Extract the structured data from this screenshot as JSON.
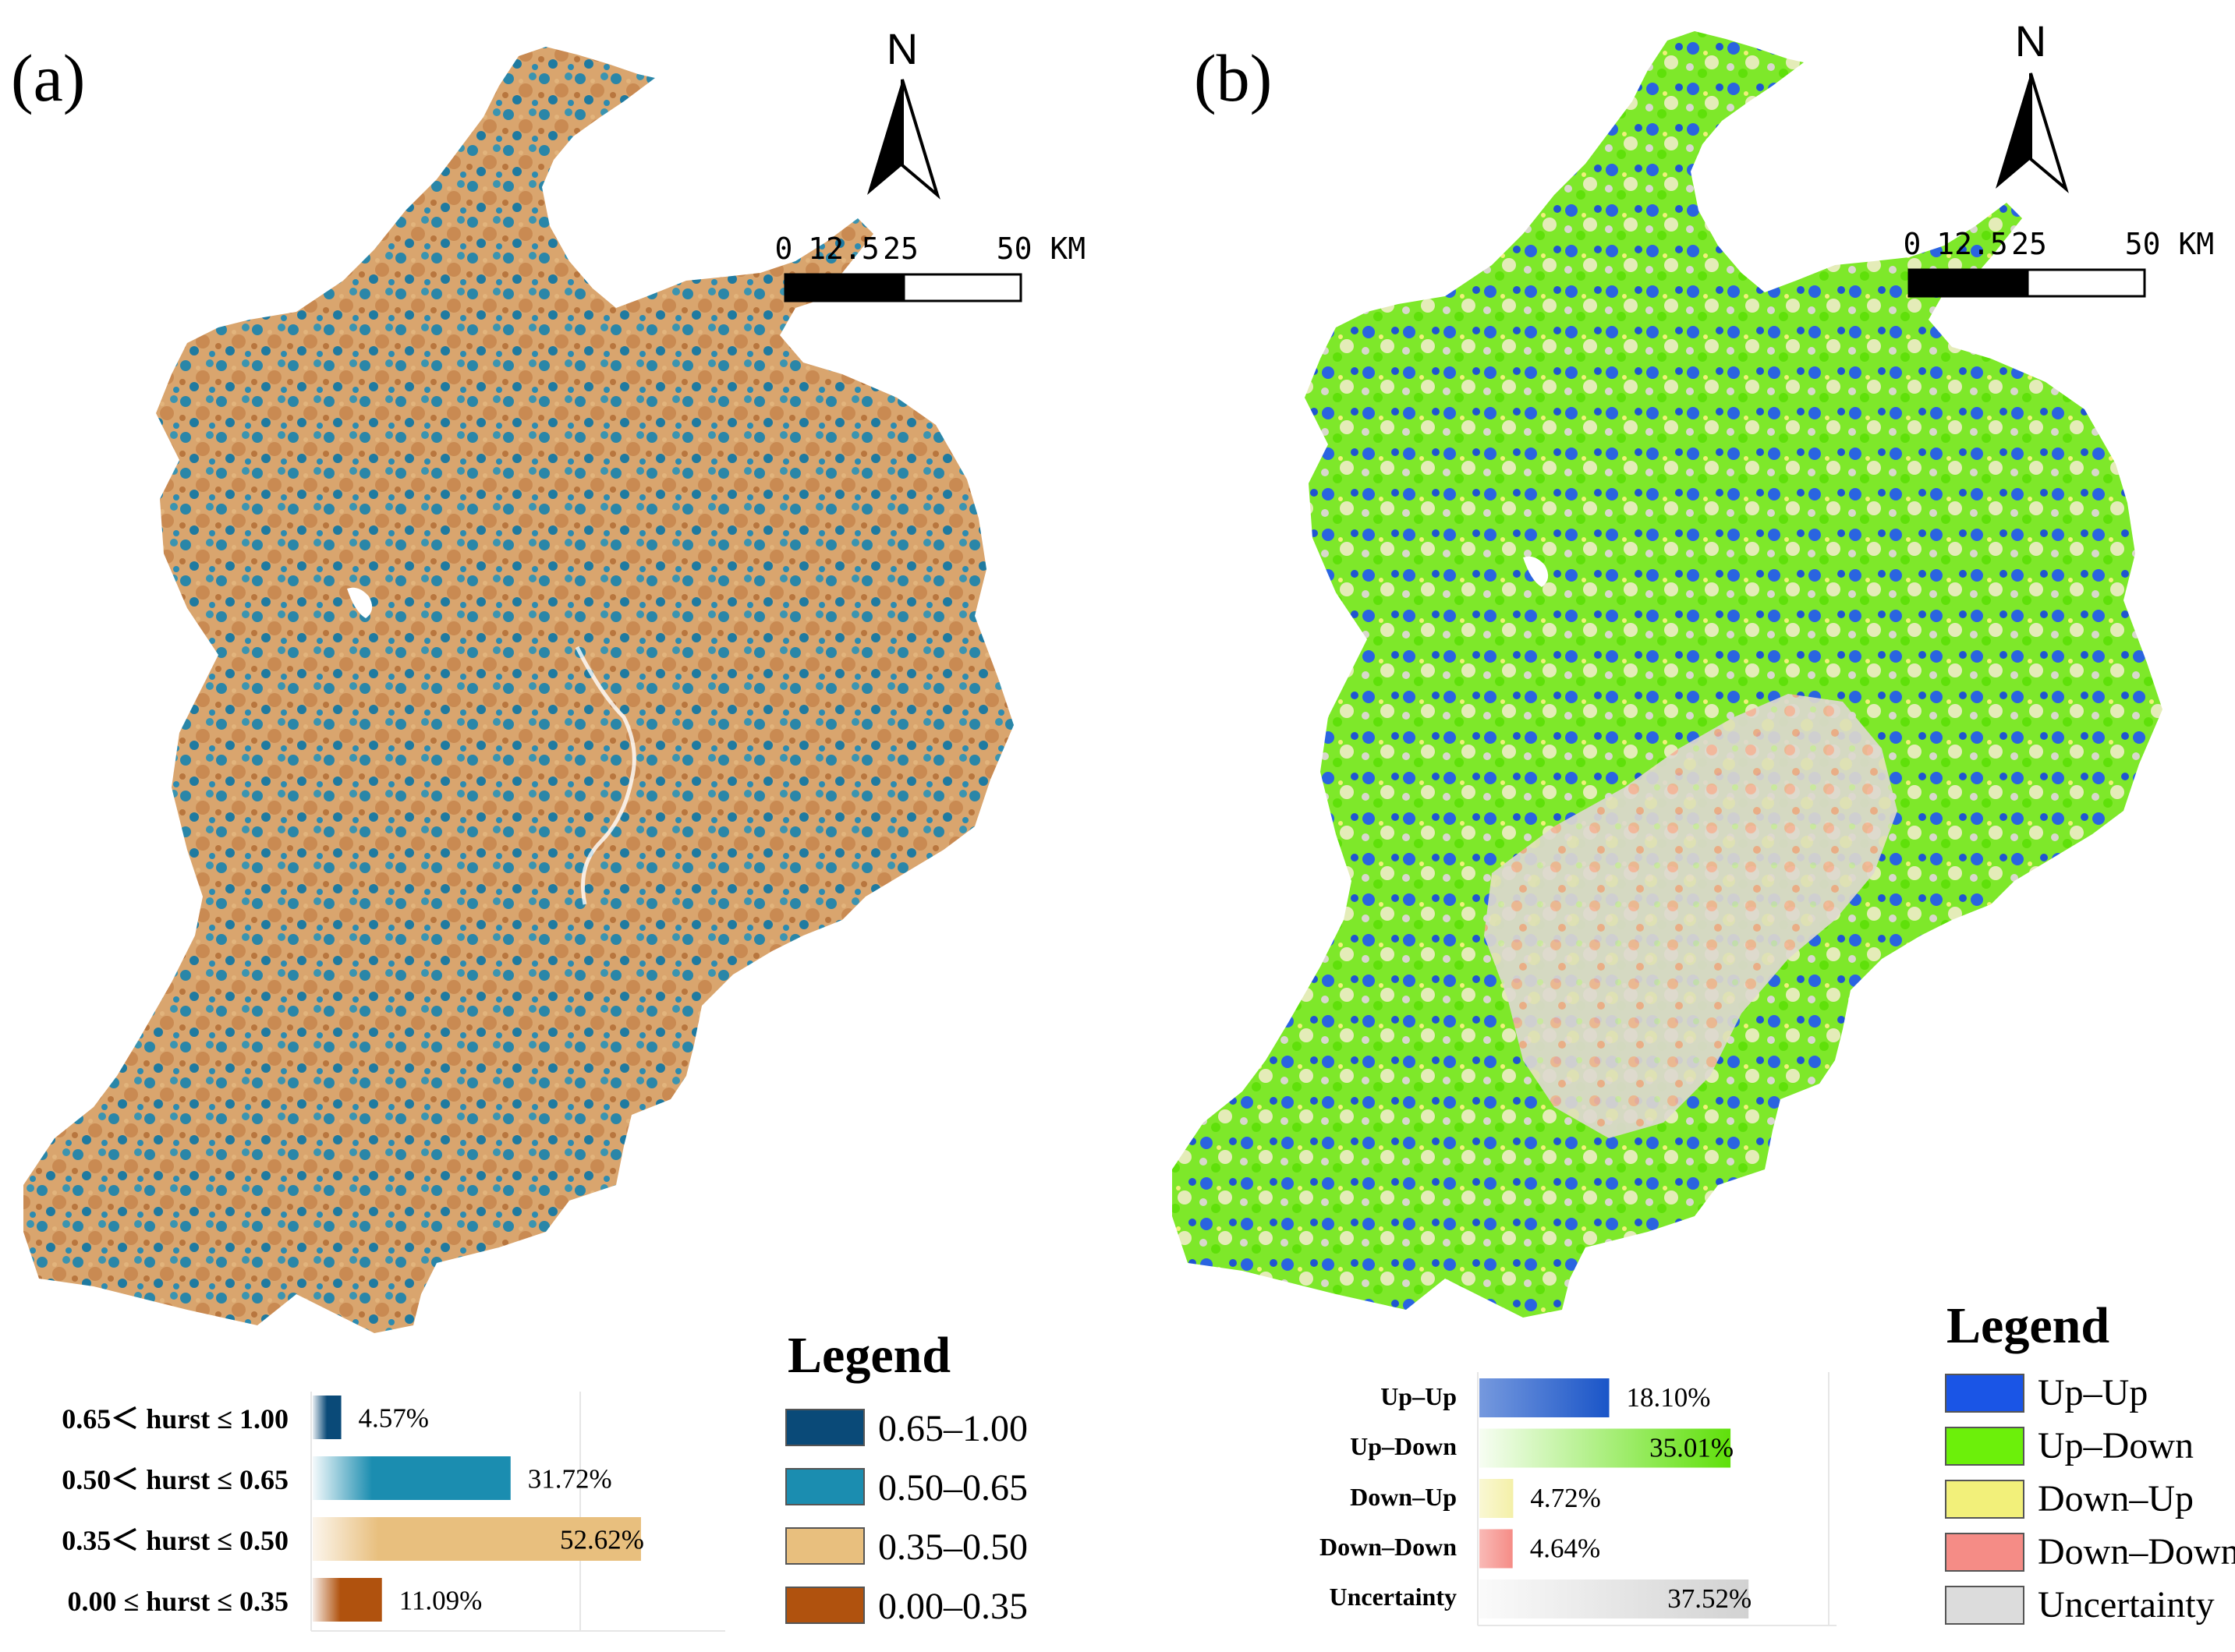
{
  "panel_a": {
    "label": "(a)",
    "north_label": "N",
    "scale_ticks": [
      "0",
      "12.5",
      "25",
      "50 KM"
    ],
    "legend_title": "Legend",
    "legend_items": [
      {
        "label": "0.65–1.00",
        "color": "#0a4a78"
      },
      {
        "label": "0.50–0.65",
        "color": "#1b8db0"
      },
      {
        "label": "0.35–0.50",
        "color": "#e8bf7e"
      },
      {
        "label": "0.00–0.35",
        "color": "#b0520e"
      }
    ],
    "bars": [
      {
        "label": "0.65＜ hurst ≤ 1.00",
        "value": 4.57,
        "value_text": "4.57%",
        "color": "#0a4a78"
      },
      {
        "label": "0.50＜ hurst ≤ 0.65",
        "value": 31.72,
        "value_text": "31.72%",
        "color": "#1b8db0"
      },
      {
        "label": "0.35＜ hurst ≤ 0.50",
        "value": 52.62,
        "value_text": "52.62%",
        "color": "#e8bf7e"
      },
      {
        "label": "0.00 ≤ hurst ≤ 0.35",
        "value": 11.09,
        "value_text": "11.09%",
        "color": "#b0520e"
      }
    ]
  },
  "panel_b": {
    "label": "(b)",
    "north_label": "N",
    "scale_ticks": [
      "0",
      "12.5",
      "25",
      "50 KM"
    ],
    "legend_title": "Legend",
    "legend_items": [
      {
        "label": "Up–Up",
        "color": "#1a55e6"
      },
      {
        "label": "Up–Down",
        "color": "#6cf00a"
      },
      {
        "label": "Down–Up",
        "color": "#f2f07a"
      },
      {
        "label": "Down–Down",
        "color": "#f58c86"
      },
      {
        "label": "Uncertainty",
        "color": "#dcdcdc"
      }
    ],
    "bars": [
      {
        "label": "Up–Up",
        "value": 18.1,
        "value_text": "18.10%",
        "color": "#1a55c8"
      },
      {
        "label": "Up–Down",
        "value": 35.01,
        "value_text": "35.01%",
        "color": "#5fe00a"
      },
      {
        "label": "Down–Up",
        "value": 4.72,
        "value_text": "4.72%",
        "color": "#f4f0a8"
      },
      {
        "label": "Down–Down",
        "value": 4.64,
        "value_text": "4.64%",
        "color": "#f58c86"
      },
      {
        "label": "Uncertainty",
        "value": 37.52,
        "value_text": "37.52%",
        "color": "#d2d2d2"
      }
    ]
  }
}
